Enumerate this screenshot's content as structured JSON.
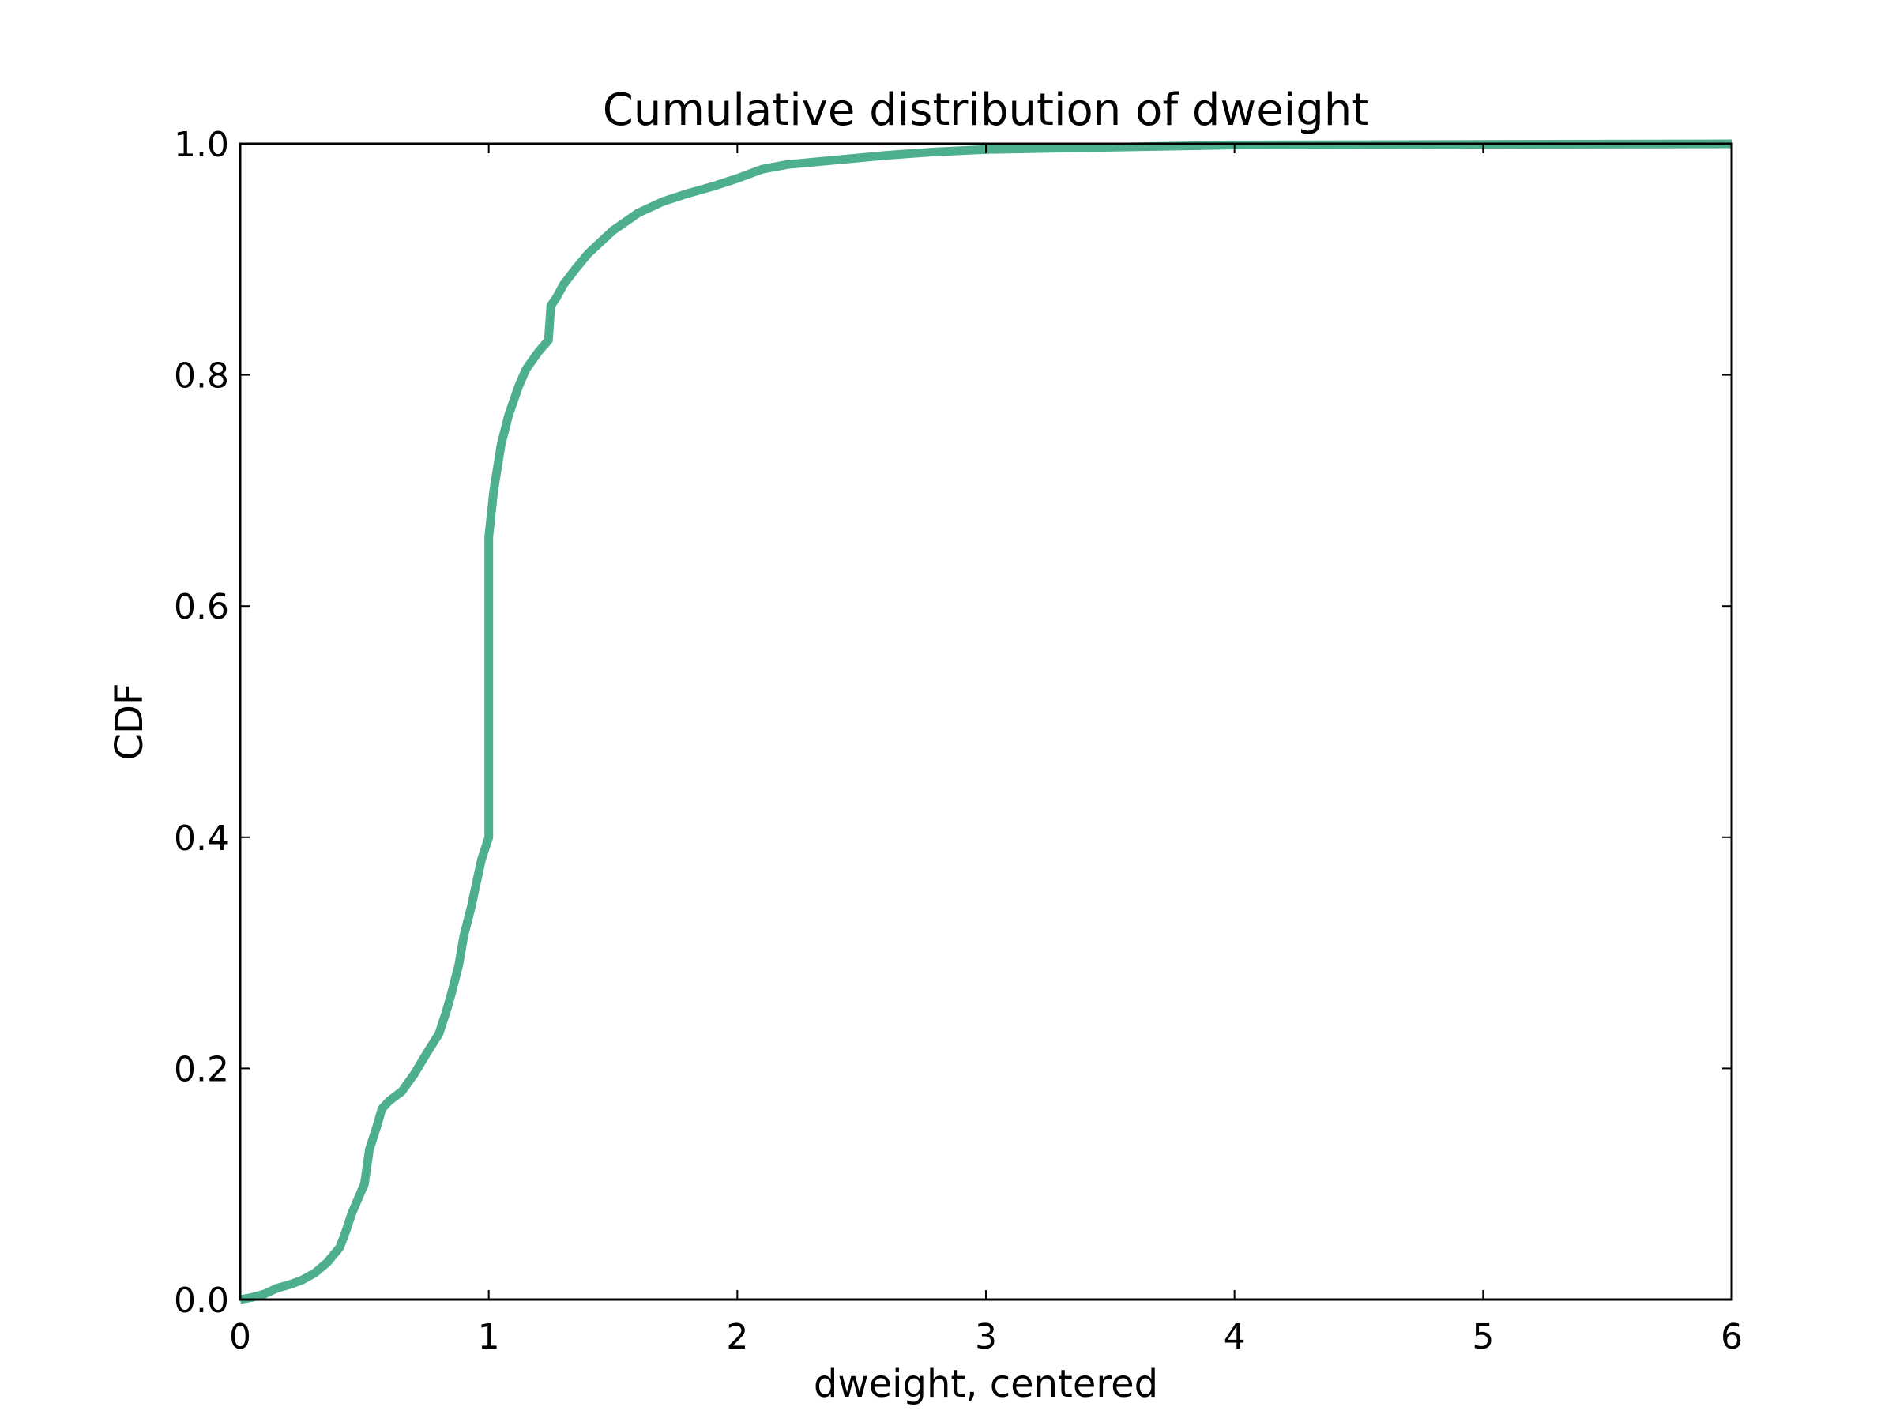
{
  "chart_data": {
    "type": "line",
    "title": "Cumulative distribution of dweight",
    "xlabel": "dweight, centered",
    "ylabel": "CDF",
    "xlim": [
      0,
      6
    ],
    "ylim": [
      0,
      1
    ],
    "xticks": [
      0,
      1,
      2,
      3,
      4,
      5,
      6
    ],
    "xtick_labels": [
      "0",
      "1",
      "2",
      "3",
      "4",
      "5",
      "6"
    ],
    "yticks": [
      0,
      0.2,
      0.4,
      0.6,
      0.8,
      1.0
    ],
    "ytick_labels": [
      "0.0",
      "0.2",
      "0.4",
      "0.6",
      "0.8",
      "1.0"
    ],
    "grid": false,
    "legend": "none",
    "line_color": "#4daf8e",
    "series": [
      {
        "x": [
          0,
          0.05,
          0.1,
          0.15,
          0.2,
          0.25,
          0.3,
          0.35,
          0.4,
          0.42,
          0.45,
          0.5,
          0.52,
          0.55,
          0.57,
          0.6,
          0.65,
          0.7,
          0.75,
          0.8,
          0.83,
          0.85,
          0.88,
          0.9,
          0.93,
          0.95,
          0.97,
          1.0,
          1.0,
          1.02,
          1.05,
          1.08,
          1.12,
          1.15,
          1.2,
          1.24,
          1.25,
          1.27,
          1.3,
          1.35,
          1.4,
          1.5,
          1.6,
          1.7,
          1.8,
          1.9,
          2.0,
          2.1,
          2.2,
          2.4,
          2.6,
          2.8,
          3.0,
          3.5,
          4.0,
          6.0
        ],
        "y": [
          0.0,
          0.002,
          0.005,
          0.01,
          0.013,
          0.017,
          0.023,
          0.032,
          0.045,
          0.056,
          0.075,
          0.1,
          0.13,
          0.15,
          0.165,
          0.172,
          0.18,
          0.195,
          0.213,
          0.23,
          0.25,
          0.265,
          0.29,
          0.315,
          0.34,
          0.36,
          0.38,
          0.4,
          0.66,
          0.7,
          0.74,
          0.765,
          0.79,
          0.805,
          0.82,
          0.83,
          0.86,
          0.866,
          0.878,
          0.892,
          0.905,
          0.925,
          0.94,
          0.95,
          0.957,
          0.963,
          0.97,
          0.978,
          0.982,
          0.986,
          0.99,
          0.993,
          0.995,
          0.997,
          0.999,
          1.0
        ]
      }
    ]
  }
}
